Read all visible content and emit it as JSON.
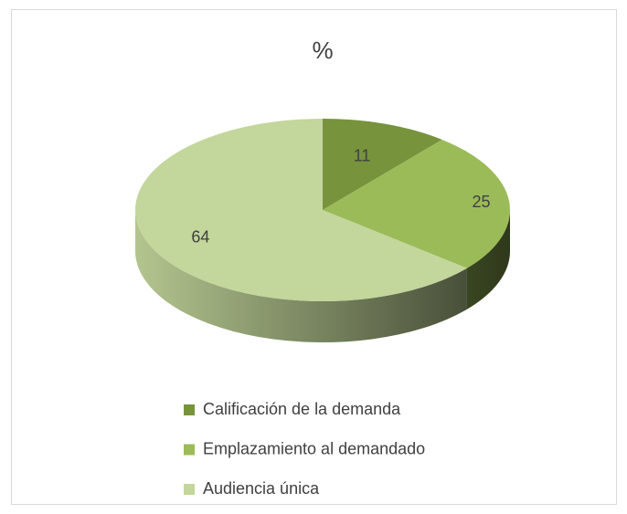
{
  "chart_data": {
    "type": "pie",
    "title": "%",
    "categories": [
      "Calificación de la demanda",
      "Emplazamiento al demandado",
      "Audiencia única"
    ],
    "values": [
      11,
      25,
      64
    ],
    "colors": [
      "#77933c",
      "#9bbb59",
      "#c3d69b"
    ],
    "legend": "bottom"
  }
}
